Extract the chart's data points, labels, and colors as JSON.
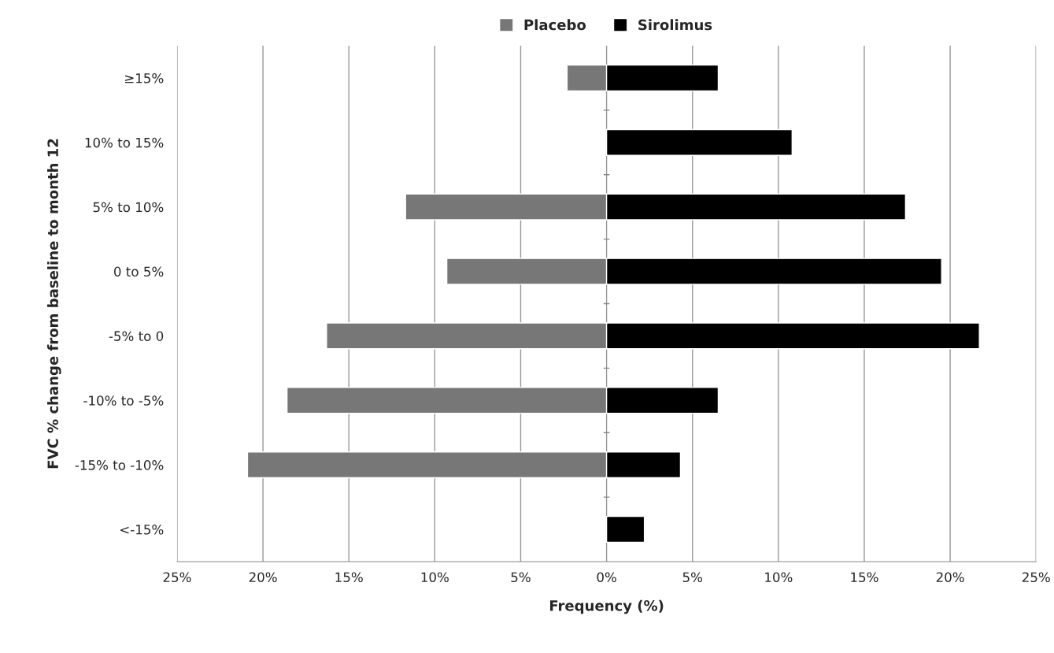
{
  "chart_data": {
    "type": "bar",
    "orientation": "horizontal",
    "xlabel": "Frequency (%)",
    "ylabel": "FVC % change from baseline to month 12",
    "categories": [
      "≥15%",
      "10% to 15%",
      "5% to 10%",
      "0 to 5%",
      "-5% to 0",
      "-10% to -5%",
      "-15% to -10%",
      "<-15%"
    ],
    "series": [
      {
        "name": "Placebo",
        "color": "#777777",
        "values": [
          -2.3,
          null,
          -11.7,
          -9.3,
          -16.3,
          -18.6,
          -20.9,
          null
        ]
      },
      {
        "name": "Sirolimus",
        "color": "#000000",
        "values": [
          6.5,
          10.8,
          17.4,
          19.5,
          21.7,
          6.5,
          4.3,
          2.2
        ]
      }
    ],
    "xlim": [
      -25,
      25
    ],
    "xticks": [
      {
        "value": -25,
        "label": "25%"
      },
      {
        "value": -20,
        "label": "20%"
      },
      {
        "value": -15,
        "label": "15%"
      },
      {
        "value": -10,
        "label": "10%"
      },
      {
        "value": -5,
        "label": "5%"
      },
      {
        "value": 0,
        "label": "0%"
      },
      {
        "value": 5,
        "label": "5%"
      },
      {
        "value": 10,
        "label": "10%"
      },
      {
        "value": 15,
        "label": "15%"
      },
      {
        "value": 20,
        "label": "20%"
      },
      {
        "value": 25,
        "label": "25%"
      }
    ],
    "grid": "x",
    "legend": "top",
    "stacked": true
  }
}
